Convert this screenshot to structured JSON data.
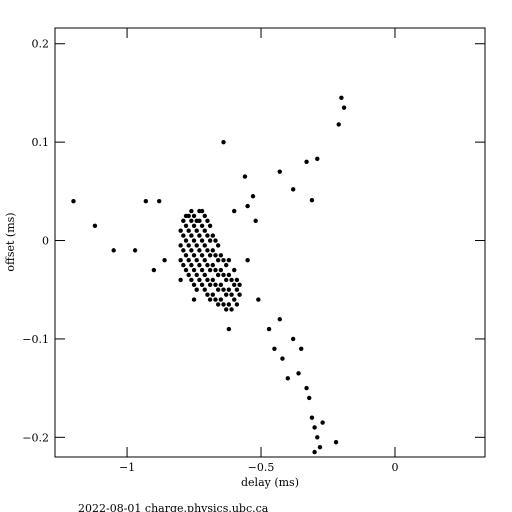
{
  "chart_data": {
    "type": "scatter",
    "xlabel": "delay (ms)",
    "ylabel": "offset (ms)",
    "footer": "2022-08-01 charge.physics.ubc.ca",
    "color": "#000000",
    "xlim": [
      -1.269,
      0.336
    ],
    "ylim": [
      -0.22,
      0.216
    ],
    "xticks": [
      {
        "value": -1,
        "label": "−1"
      },
      {
        "value": -0.5,
        "label": "−0.5"
      },
      0
    ],
    "yticks": [
      0.2,
      0.1,
      0,
      {
        "value": -0.1,
        "label": "−0.1"
      },
      {
        "value": -0.2,
        "label": "−0.2"
      }
    ],
    "x": [
      -0.8,
      -0.8,
      -0.8,
      -0.79,
      -0.79,
      -0.79,
      -0.79,
      -0.78,
      -0.78,
      -0.78,
      -0.78,
      -0.78,
      -0.77,
      -0.77,
      -0.77,
      -0.77,
      -0.77,
      -0.76,
      -0.76,
      -0.76,
      -0.76,
      -0.76,
      -0.76,
      -0.75,
      -0.75,
      -0.75,
      -0.75,
      -0.75,
      -0.75,
      -0.74,
      -0.74,
      -0.74,
      -0.74,
      -0.74,
      -0.74,
      -0.73,
      -0.73,
      -0.73,
      -0.73,
      -0.73,
      -0.73,
      -0.72,
      -0.72,
      -0.72,
      -0.72,
      -0.72,
      -0.72,
      -0.71,
      -0.71,
      -0.71,
      -0.71,
      -0.71,
      -0.71,
      -0.7,
      -0.7,
      -0.7,
      -0.7,
      -0.7,
      -0.7,
      -0.69,
      -0.69,
      -0.69,
      -0.69,
      -0.69,
      -0.69,
      -0.68,
      -0.68,
      -0.68,
      -0.68,
      -0.68,
      -0.67,
      -0.67,
      -0.67,
      -0.67,
      -0.67,
      -0.66,
      -0.66,
      -0.66,
      -0.66,
      -0.66,
      -0.65,
      -0.65,
      -0.65,
      -0.65,
      -0.64,
      -0.64,
      -0.64,
      -0.64,
      -0.63,
      -0.63,
      -0.63,
      -0.63,
      -0.62,
      -0.62,
      -0.62,
      -0.62,
      -0.61,
      -0.61,
      -0.61,
      -0.6,
      -0.6,
      -0.6,
      -0.59,
      -0.59,
      -0.59,
      -0.58,
      -0.58,
      -1.2,
      -1.12,
      -0.93,
      -0.88,
      -0.97,
      -1.05,
      -0.64,
      -0.2,
      -0.19,
      -0.21,
      -0.29,
      -0.43,
      -0.38,
      -0.33,
      -0.31,
      -0.53,
      -0.56,
      -0.52,
      -0.55,
      -0.51,
      -0.47,
      -0.45,
      -0.42,
      -0.38,
      -0.35,
      -0.4,
      -0.33,
      -0.36,
      -0.32,
      -0.31,
      -0.3,
      -0.29,
      -0.28,
      -0.3,
      -0.27,
      -0.22,
      -0.43,
      -0.62,
      -0.75,
      -0.8,
      -0.9,
      -0.86,
      -0.6,
      -0.55
    ],
    "y": [
      -0.005,
      0.01,
      -0.02,
      -0.01,
      0.005,
      0.02,
      -0.025,
      -0.015,
      0,
      0.015,
      -0.03,
      0.025,
      -0.02,
      -0.005,
      0.01,
      0.025,
      -0.035,
      -0.025,
      -0.01,
      0.005,
      0.02,
      -0.04,
      0.03,
      -0.03,
      -0.015,
      0,
      0.015,
      0.025,
      -0.045,
      -0.035,
      -0.02,
      -0.005,
      0.01,
      0.02,
      -0.05,
      -0.04,
      -0.025,
      -0.01,
      0.005,
      0.02,
      0.03,
      -0.045,
      -0.03,
      -0.015,
      0,
      0.015,
      0.03,
      -0.05,
      -0.035,
      -0.02,
      -0.005,
      0.01,
      0.025,
      -0.055,
      -0.04,
      -0.025,
      -0.01,
      0.005,
      0.02,
      -0.06,
      -0.045,
      -0.03,
      -0.015,
      0,
      0.015,
      -0.055,
      -0.04,
      -0.025,
      -0.01,
      0.005,
      -0.06,
      -0.045,
      -0.03,
      -0.015,
      0,
      -0.065,
      -0.05,
      -0.035,
      -0.02,
      -0.005,
      -0.06,
      -0.045,
      -0.03,
      -0.015,
      -0.065,
      -0.05,
      -0.035,
      -0.02,
      -0.07,
      -0.055,
      -0.04,
      -0.025,
      -0.065,
      -0.05,
      -0.035,
      -0.02,
      -0.07,
      -0.055,
      -0.04,
      -0.06,
      -0.045,
      -0.03,
      -0.065,
      -0.05,
      -0.04,
      -0.055,
      -0.045,
      0.04,
      0.015,
      0.04,
      0.04,
      -0.01,
      -0.01,
      0.1,
      0.145,
      0.135,
      0.118,
      0.083,
      0.07,
      0.052,
      0.08,
      0.041,
      0.045,
      0.065,
      0.02,
      -0.02,
      -0.06,
      -0.09,
      -0.11,
      -0.12,
      -0.1,
      -0.11,
      -0.14,
      -0.15,
      -0.135,
      -0.16,
      -0.18,
      -0.19,
      -0.2,
      -0.21,
      -0.215,
      -0.185,
      -0.205,
      -0.08,
      -0.09,
      -0.06,
      -0.04,
      -0.03,
      -0.02,
      0.03,
      0.035
    ]
  }
}
